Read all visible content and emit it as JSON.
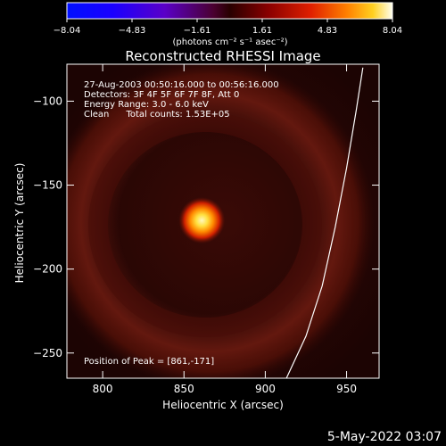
{
  "chart_data": {
    "type": "heatmap",
    "title": "Reconstructed RHESSI Image",
    "xlabel": "Heliocentric X (arcsec)",
    "ylabel": "Heliocentric Y (arcsec)",
    "xlim": [
      778,
      970
    ],
    "ylim": [
      -265,
      -78
    ],
    "xticks": [
      800,
      850,
      900,
      950
    ],
    "yticks": [
      -100,
      -150,
      -200,
      -250
    ],
    "colorbar": {
      "units": "(photons cm⁻² s⁻¹ asec⁻²)",
      "range": [
        -8.04,
        8.04
      ],
      "ticks": [
        "-8.04",
        "-4.83",
        "-1.61",
        "1.61",
        "4.83",
        "8.04"
      ]
    },
    "info_lines": [
      "27-Aug-2003 00:50:16.000 to 00:56:16.000",
      "Detectors: 3F 4F 5F 6F 7F 8F, Att 0",
      "Energy Range: 3.0 - 6.0 keV",
      "Clean      Total counts: 1.53E+05"
    ],
    "peak_label": "Position of Peak = [861,-171]",
    "peak": {
      "x": 861,
      "y": -171,
      "value": 8.04
    },
    "limb": [
      [
        913,
        -265
      ],
      [
        925,
        -240
      ],
      [
        935,
        -210
      ],
      [
        943,
        -175
      ],
      [
        950,
        -140
      ],
      [
        956,
        -105
      ],
      [
        960,
        -80
      ]
    ],
    "colors": {
      "background": "#000000",
      "limb": "#ffffff",
      "ring": "#5a1208",
      "source_core": "#fff8c0"
    }
  },
  "footer": {
    "timestamp": "5-May-2022 03:07"
  }
}
